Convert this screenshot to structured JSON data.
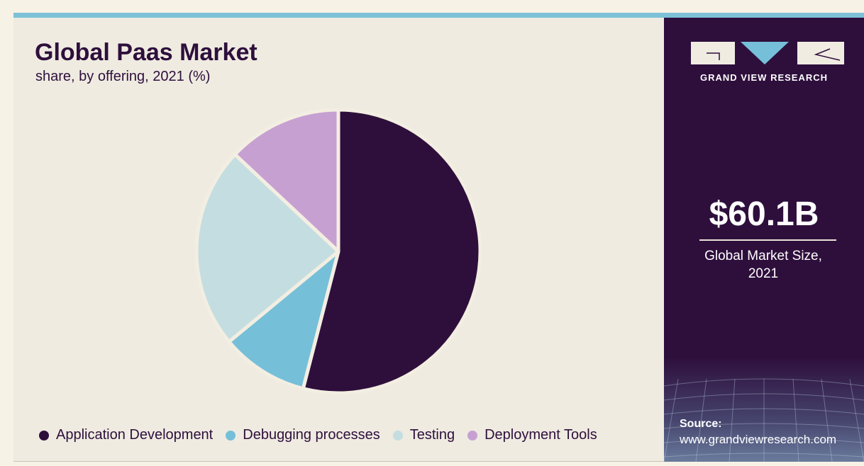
{
  "header": {
    "title": "Global Paas Market",
    "subtitle": "share, by offering, 2021 (%)"
  },
  "chart_data": {
    "type": "pie",
    "categories": [
      "Application Development",
      "Debugging processes",
      "Testing",
      "Deployment Tools"
    ],
    "values": [
      54,
      10,
      23,
      13
    ],
    "colors": [
      "#2e0f3c",
      "#76bfd8",
      "#c4dde0",
      "#c7a0d2"
    ],
    "legend_position": "bottom"
  },
  "sidebar": {
    "brand": "GRAND VIEW RESEARCH",
    "kpi_value": "$60.1B",
    "kpi_label": "Global Market Size, 2021",
    "source_label": "Source:",
    "source_url": "www.grandviewresearch.com"
  }
}
